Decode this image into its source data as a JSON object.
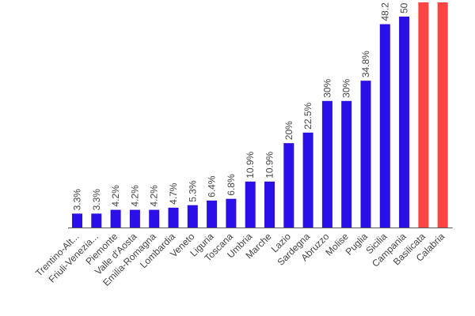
{
  "colors": {
    "bar_default": "#2a0fe6",
    "bar_highlight": "#ff4444",
    "axis": "#555555",
    "text": "#444444"
  },
  "chart_data": {
    "type": "bar",
    "categories": [
      "Trentino-Alt...",
      "Friuli-Venezia...",
      "Piemonte",
      "Valle d'Aosta",
      "Emilia-Romagna",
      "Lombardia",
      "Veneto",
      "Liguria",
      "Toscana",
      "Umbria",
      "Marche",
      "Lazio",
      "Sardegna",
      "Abruzzo",
      "Molise",
      "Puglia",
      "Sicilia",
      "Campania",
      "Basilicata",
      "Calabria"
    ],
    "values": [
      3.3,
      3.3,
      4.2,
      4.2,
      4.2,
      4.7,
      5.3,
      6.4,
      6.8,
      10.9,
      10.9,
      20,
      22.5,
      30,
      30,
      34.8,
      48.2,
      50,
      null,
      null
    ],
    "data_labels": [
      "3.3%",
      "3.3%",
      "4.2%",
      "4.2%",
      "4.2%",
      "4.7%",
      "5.3%",
      "6.4%",
      "6.8%",
      "10.9%",
      "10.9%",
      "20%",
      "22.5%",
      "30%",
      "30%",
      "34.8%",
      "48.2",
      "50",
      "",
      ""
    ],
    "highlighted": [
      "Basilicata",
      "Calabria"
    ],
    "ylim": [
      0,
      50
    ],
    "title": "",
    "xlabel": "",
    "ylabel": "",
    "grid": false,
    "legend": "none"
  }
}
